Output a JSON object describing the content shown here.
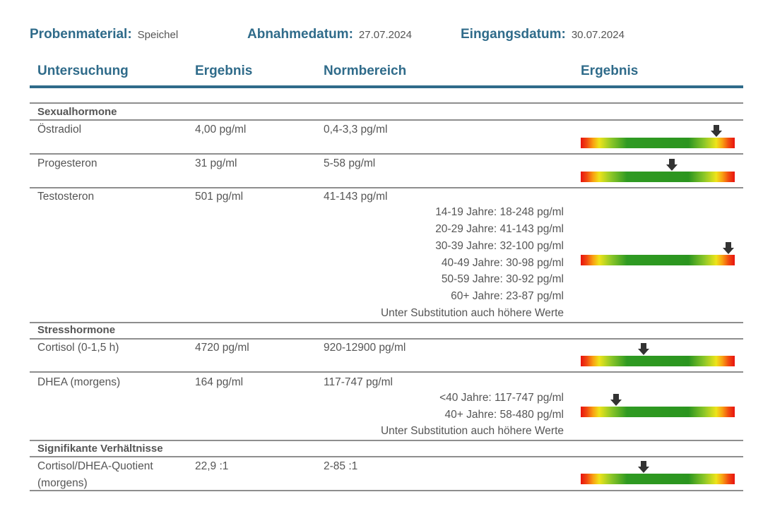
{
  "meta": {
    "probenmaterial_label": "Probenmaterial:",
    "probenmaterial_value": "Speichel",
    "abnahmedatum_label": "Abnahmedatum:",
    "abnahmedatum_value": "27.07.2024",
    "eingangsdatum_label": "Eingangsdatum:",
    "eingangsdatum_value": "30.07.2024"
  },
  "header": {
    "untersuchung": "Untersuchung",
    "ergebnis": "Ergebnis",
    "normbereich": "Normbereich",
    "ergebnis_bar": "Ergebnis"
  },
  "sections": {
    "sexualhormone": "Sexualhormone",
    "stresshormone": "Stresshormone",
    "verhaeltnisse": "Signifikante Verhältnisse"
  },
  "rows": {
    "oestradiol": {
      "name": "Östradiol",
      "result": "4,00 pg/ml",
      "range": "0,4-3,3 pg/ml",
      "marker": 0.88
    },
    "progesteron": {
      "name": "Progesteron",
      "result": "31 pg/ml",
      "range": "5-58 pg/ml",
      "marker": 0.59
    },
    "testosteron": {
      "name": "Testosteron",
      "result": "501 pg/ml",
      "range": "41-143 pg/ml",
      "sub": [
        "14-19 Jahre: 18-248 pg/ml",
        "20-29 Jahre: 41-143 pg/ml",
        "30-39 Jahre: 32-100 pg/ml",
        "40-49 Jahre: 30-98 pg/ml",
        "50-59 Jahre: 30-92 pg/ml",
        "60+ Jahre: 23-87 pg/ml",
        "Unter Substitution auch höhere Werte"
      ],
      "marker": 0.96
    },
    "cortisol": {
      "name": "Cortisol (0-1,5 h)",
      "result": "4720 pg/ml",
      "range": "920-12900 pg/ml",
      "marker": 0.41
    },
    "dhea": {
      "name": "DHEA (morgens)",
      "result": "164 pg/ml",
      "range": "117-747 pg/ml",
      "sub": [
        "<40 Jahre: 117-747 pg/ml",
        "40+ Jahre: 58-480 pg/ml",
        "Unter Substitution auch höhere Werte"
      ],
      "marker": 0.23
    },
    "quotient": {
      "name": "Cortisol/DHEA-Quotient",
      "name2": "(morgens)",
      "result": "22,9 :1",
      "range": "2-85 :1",
      "marker": 0.41
    }
  },
  "colors": {
    "accent": "#2f6b8a",
    "arrow": "#333333",
    "bar_red": "#e8130f",
    "bar_yellow": "#eee41a",
    "bar_green": "#2b951f"
  }
}
